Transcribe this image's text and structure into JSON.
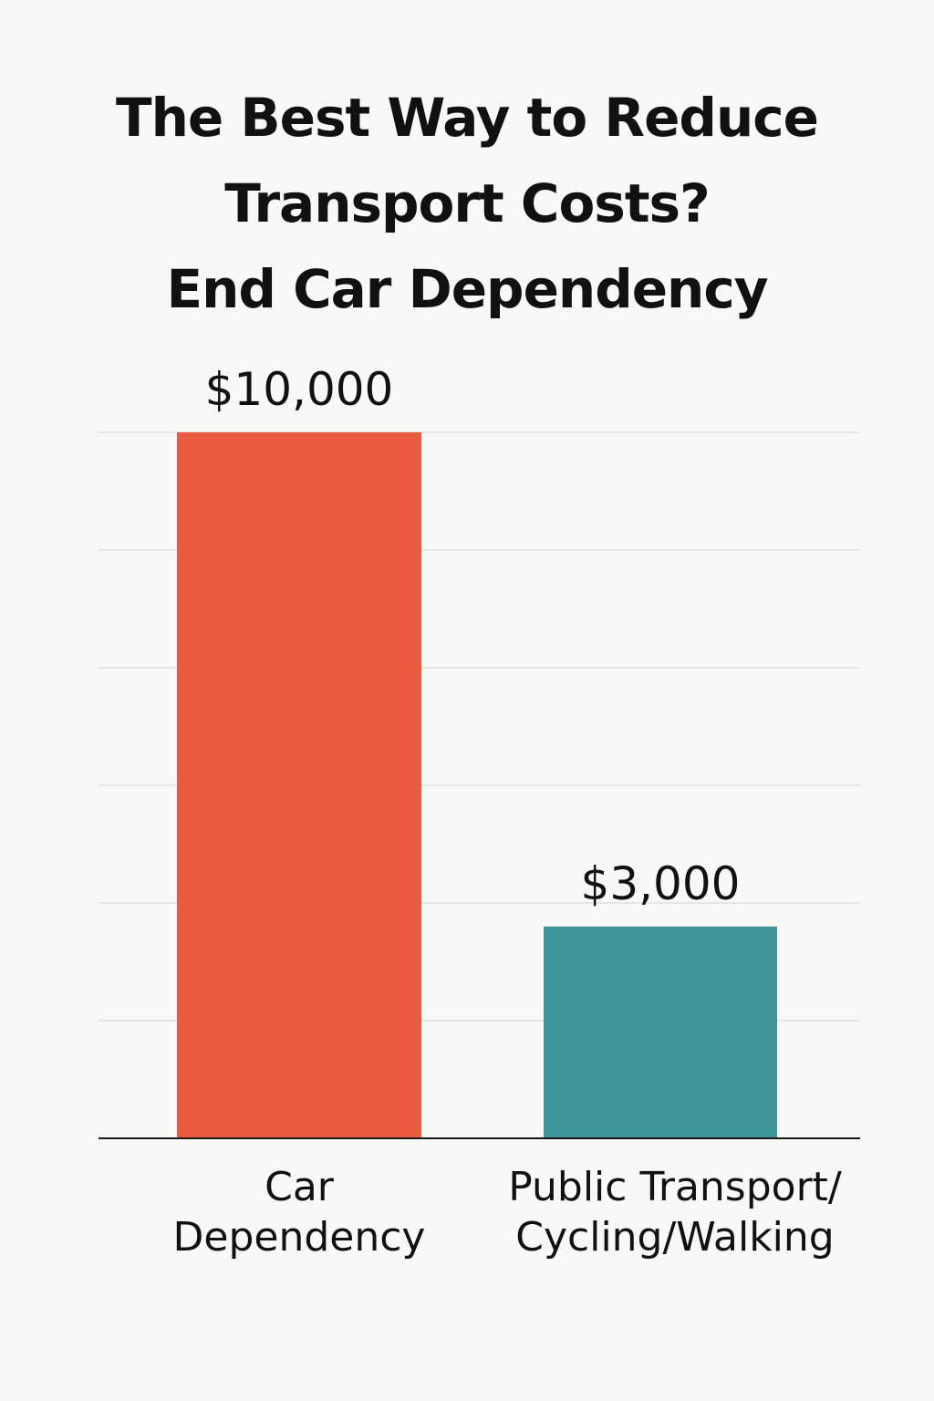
{
  "chart_data": {
    "type": "bar",
    "title": [
      "The Best Way to Reduce",
      "Transport Costs?",
      "End Car Dependency"
    ],
    "categories": [
      [
        "Car",
        "Dependency"
      ],
      [
        "Public Transport/",
        "Cycling/Walking"
      ]
    ],
    "values": [
      10000,
      3000
    ],
    "value_labels": [
      "$10,000",
      "$3,000"
    ],
    "colors": [
      "#ea5b3f",
      "#3d9599"
    ],
    "ylim": [
      0,
      10000
    ],
    "grid": true,
    "xlabel": "",
    "ylabel": ""
  }
}
